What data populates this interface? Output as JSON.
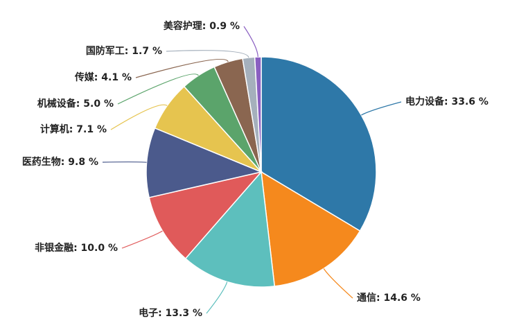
{
  "chart_data": {
    "type": "pie",
    "value_labels": [
      "电力设备: 33.6 %",
      "通信: 14.6 %",
      "电子: 13.3 %",
      "非银金融: 10.0 %",
      "医药生物: 9.8 %",
      "计算机: 7.1 %",
      "机械设备: 5.0 %",
      "传媒: 4.1 %",
      "国防军工: 1.7 %",
      "美容护理: 0.9 %"
    ],
    "values": [
      33.6,
      14.6,
      13.3,
      10.0,
      9.8,
      7.1,
      5.0,
      4.1,
      1.7,
      0.9
    ],
    "colors": [
      "#2e78a8",
      "#f5891d",
      "#5dbfbd",
      "#e05a5a",
      "#4b5a8c",
      "#e6c44f",
      "#5ba46b",
      "#8a6650",
      "#a5b0bc",
      "#8a5fc1"
    ]
  }
}
